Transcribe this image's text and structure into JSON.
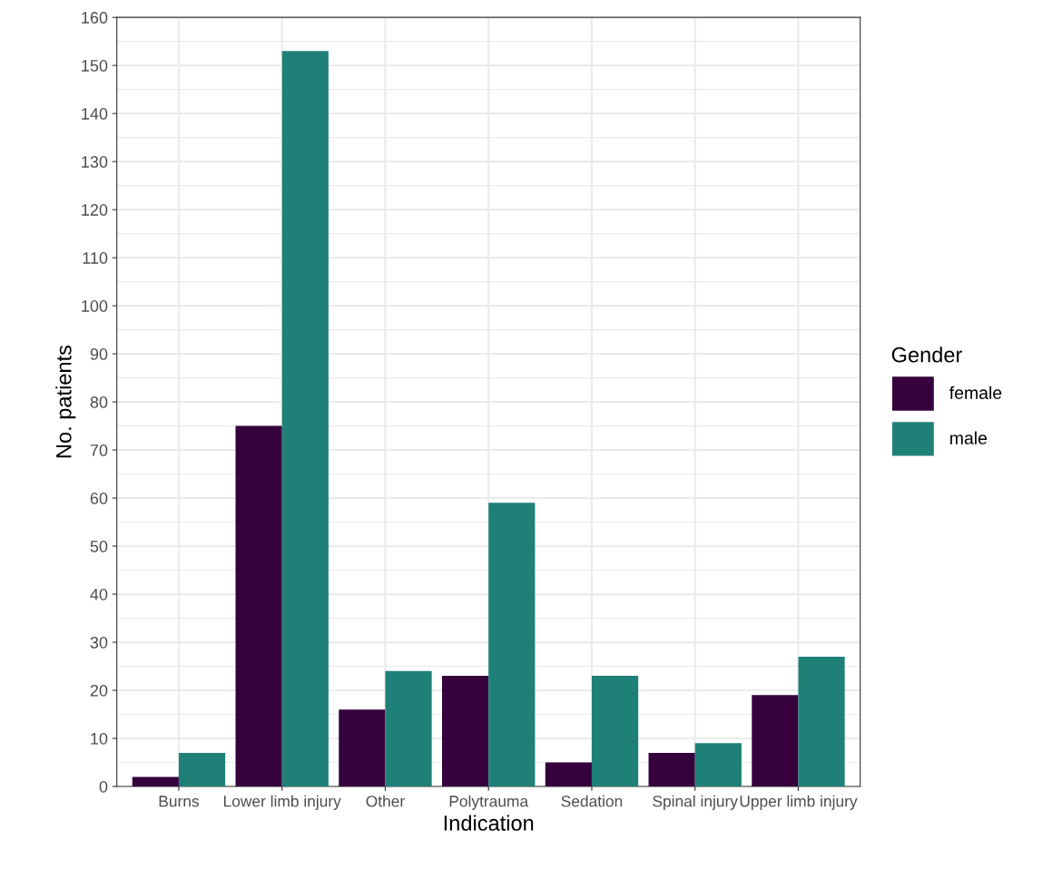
{
  "chart_data": {
    "type": "bar",
    "xlabel": "Indication",
    "ylabel": "No. patients",
    "legend_title": "Gender",
    "categories": [
      "Burns",
      "Lower limb injury",
      "Other",
      "Polytrauma",
      "Sedation",
      "Spinal injury",
      "Upper limb injury"
    ],
    "series": [
      {
        "name": "female",
        "color": "#35003c",
        "values": [
          2,
          75,
          16,
          23,
          5,
          7,
          19
        ]
      },
      {
        "name": "male",
        "color": "#1f8077",
        "values": [
          7,
          153,
          24,
          59,
          23,
          9,
          27
        ]
      }
    ],
    "ylim": [
      0,
      160
    ],
    "yticks": [
      0,
      10,
      20,
      30,
      40,
      50,
      60,
      70,
      80,
      90,
      100,
      110,
      120,
      130,
      140,
      150,
      160
    ],
    "grid": true,
    "legend": "right"
  }
}
